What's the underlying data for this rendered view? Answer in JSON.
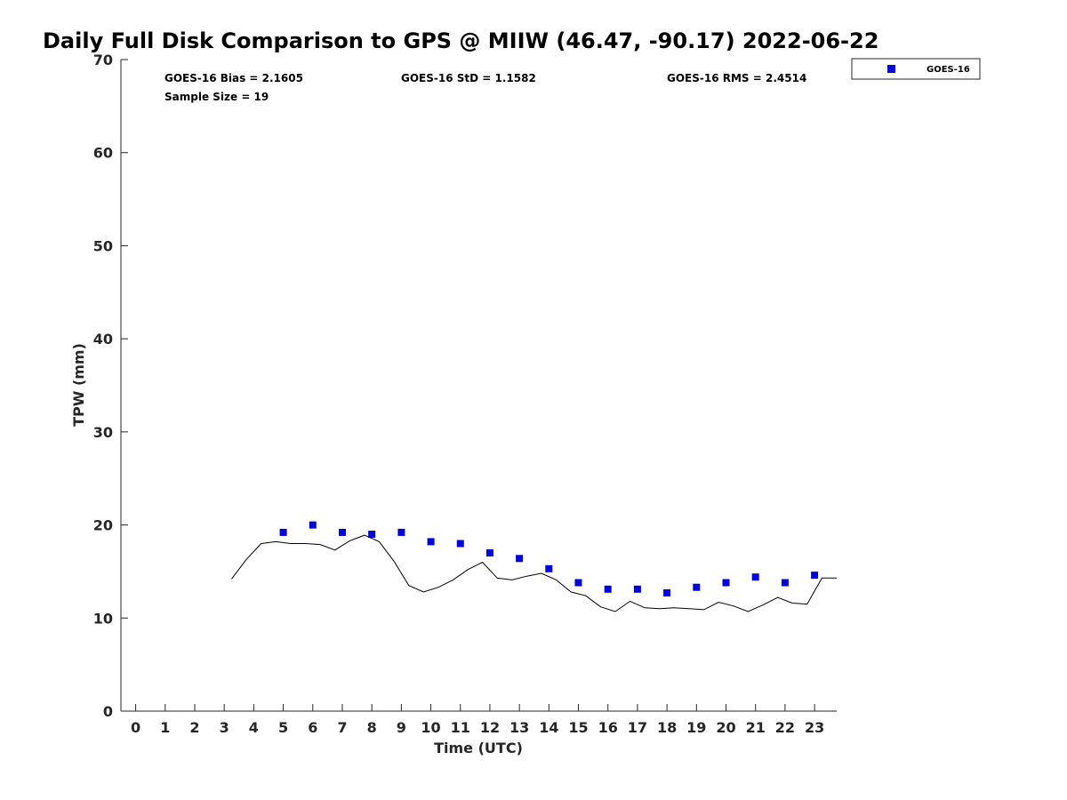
{
  "chart_data": {
    "type": "scatter",
    "title": "Daily Full Disk Comparison to GPS @ MIIW (46.47, -90.17) 2022-06-22",
    "xlabel": "Time (UTC)",
    "ylabel": "TPW (mm)",
    "xlim": [
      -0.5,
      23.75
    ],
    "ylim": [
      0,
      70
    ],
    "xticks": [
      0,
      1,
      2,
      3,
      4,
      5,
      6,
      7,
      8,
      9,
      10,
      11,
      12,
      13,
      14,
      15,
      16,
      17,
      18,
      19,
      20,
      21,
      22,
      23
    ],
    "yticks": [
      0,
      10,
      20,
      30,
      40,
      50,
      60,
      70
    ],
    "grid": false,
    "legend": {
      "position": "top-right",
      "entries": [
        "GOES-16"
      ]
    },
    "stats": {
      "bias": "GOES-16 Bias = 2.1605",
      "std": "GOES-16 StD = 1.1582",
      "rms": "GOES-16 RMS = 2.4514",
      "sample": "Sample Size = 19"
    },
    "series": [
      {
        "name": "GOES-16",
        "kind": "markers",
        "color": "#0000dd",
        "x": [
          5,
          6,
          7,
          8,
          9,
          10,
          11,
          12,
          13,
          14,
          15,
          16,
          17,
          18,
          19,
          20,
          21,
          22,
          23
        ],
        "y": [
          19.2,
          20.0,
          19.2,
          19.0,
          19.2,
          18.2,
          18.0,
          17.0,
          16.4,
          15.3,
          13.8,
          13.1,
          13.1,
          12.7,
          13.3,
          13.8,
          14.4,
          13.8,
          14.6
        ]
      },
      {
        "kind": "line",
        "color": "#000000",
        "x": [
          3.25,
          3.75,
          4.25,
          4.75,
          5.25,
          5.75,
          6.25,
          6.75,
          7.25,
          7.75,
          8.25,
          8.75,
          9.25,
          9.75,
          10.25,
          10.75,
          11.25,
          11.75,
          12.25,
          12.75,
          13.25,
          13.75,
          14.25,
          14.75,
          15.25,
          15.75,
          16.25,
          16.75,
          17.25,
          17.75,
          18.25,
          18.75,
          19.25,
          19.75,
          20.25,
          20.75,
          21.25,
          21.75,
          22.25,
          22.75,
          23.25,
          23.75
        ],
        "y": [
          14.2,
          16.3,
          18.0,
          18.2,
          18.0,
          18.0,
          17.9,
          17.3,
          18.3,
          18.9,
          18.2,
          16.1,
          13.5,
          12.8,
          13.3,
          14.1,
          15.2,
          16.0,
          14.3,
          14.1,
          14.5,
          14.8,
          14.1,
          12.8,
          12.4,
          11.2,
          10.7,
          11.8,
          11.1,
          11.0,
          11.1,
          11.0,
          10.9,
          11.7,
          11.3,
          10.7,
          11.4,
          12.2,
          11.6,
          11.5,
          14.3,
          14.3
        ]
      }
    ]
  }
}
